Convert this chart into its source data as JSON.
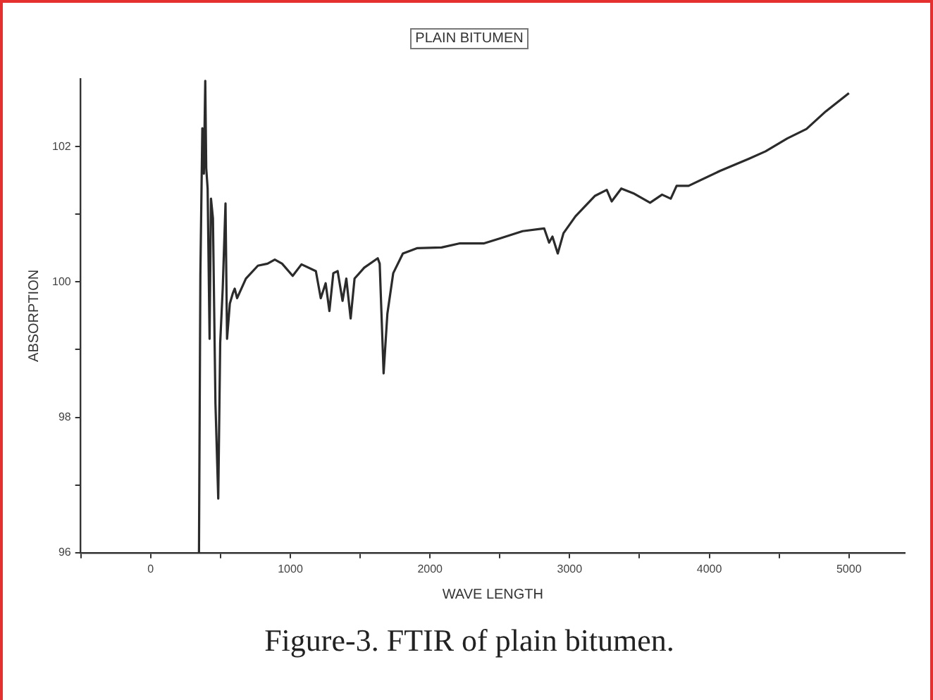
{
  "chart_data": {
    "type": "line",
    "title": "PLAIN BITUMEN",
    "xlabel": "WAVE LENGTH",
    "ylabel": "ABSORPTION",
    "annotations": [
      "Figure-3. FTIR of plain bitumen."
    ],
    "xlim": [
      -500,
      5400
    ],
    "xticks": [
      {
        "value": -500,
        "label": null
      },
      0,
      {
        "value": 500,
        "label": null
      },
      1000,
      {
        "value": 1500,
        "label": null
      },
      2000,
      {
        "value": 2500,
        "label": null
      },
      3000,
      {
        "value": 3500,
        "label": null
      },
      4000,
      {
        "value": 4500,
        "label": null
      },
      5000
    ],
    "ylim": [
      96,
      103
    ],
    "yticks": [
      96,
      {
        "value": 97,
        "label": null
      },
      98,
      {
        "value": 99,
        "label": null
      },
      100,
      {
        "value": 101,
        "label": null
      },
      102
    ],
    "grid": false,
    "legend": false,
    "marker": "none",
    "line_style": "solid",
    "series": [
      {
        "color": "#2b2b2b",
        "x": [
          346,
          356,
          370,
          381,
          391,
          398,
          408,
          422,
          432,
          446,
          464,
          484,
          498,
          516,
          536,
          547,
          567,
          588,
          602,
          619,
          682,
          768,
          837,
          889,
          941,
          1017,
          1080,
          1183,
          1218,
          1253,
          1280,
          1308,
          1339,
          1374,
          1401,
          1432,
          1460,
          1529,
          1626,
          1640,
          1668,
          1695,
          1737,
          1806,
          1910,
          2083,
          2215,
          2388,
          2498,
          2663,
          2818,
          2853,
          2877,
          2915,
          2956,
          3042,
          3180,
          3266,
          3301,
          3370,
          3456,
          3576,
          3662,
          3724,
          3766,
          3852,
          4076,
          4283,
          4403,
          4558,
          4696,
          4834,
          5000
        ],
        "values": [
          96,
          100.1,
          102.27,
          101.6,
          102.97,
          101.68,
          101.38,
          99.16,
          101.23,
          100.94,
          98.2,
          96.8,
          99.1,
          99.9,
          101.16,
          99.16,
          99.68,
          99.83,
          99.9,
          99.76,
          100.05,
          100.24,
          100.27,
          100.33,
          100.27,
          100.09,
          100.26,
          100.16,
          99.76,
          99.98,
          99.57,
          100.13,
          100.16,
          99.72,
          100.05,
          99.46,
          100.05,
          100.21,
          100.35,
          100.27,
          98.65,
          99.53,
          100.13,
          100.42,
          100.5,
          100.51,
          100.57,
          100.57,
          100.64,
          100.75,
          100.79,
          100.58,
          100.67,
          100.42,
          100.72,
          100.97,
          101.27,
          101.36,
          101.19,
          101.38,
          101.31,
          101.17,
          101.29,
          101.23,
          101.42,
          101.42,
          101.64,
          101.82,
          101.93,
          102.12,
          102.26,
          102.52,
          102.79
        ]
      }
    ]
  }
}
